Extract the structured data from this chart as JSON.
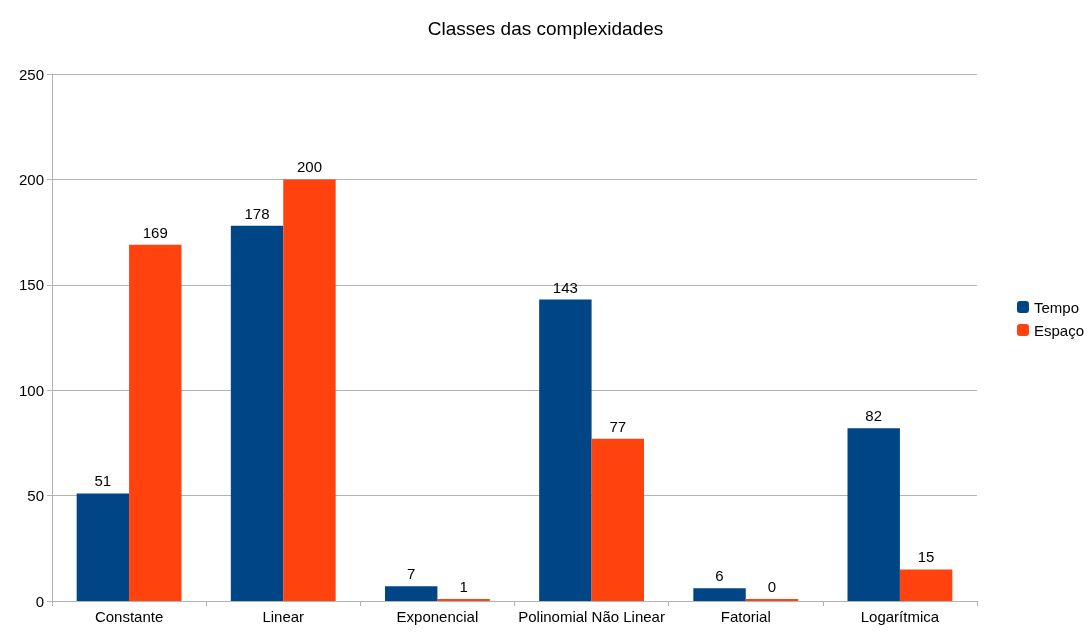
{
  "chart_data": {
    "type": "bar",
    "title": "Classes das complexidades",
    "categories": [
      "Constante",
      "Linear",
      "Exponencial",
      "Polinomial Não Linear",
      "Fatorial",
      "Logarítmica"
    ],
    "series": [
      {
        "name": "Tempo",
        "color": "#004586",
        "values": [
          51,
          178,
          7,
          143,
          6,
          82
        ]
      },
      {
        "name": "Espaço",
        "color": "#ff420e",
        "values": [
          169,
          200,
          1,
          77,
          0,
          15
        ]
      }
    ],
    "ylim": [
      0,
      250
    ],
    "yticks": [
      0,
      50,
      100,
      150,
      200,
      250
    ],
    "grid": "y",
    "legend": "right",
    "data_labels": true
  }
}
